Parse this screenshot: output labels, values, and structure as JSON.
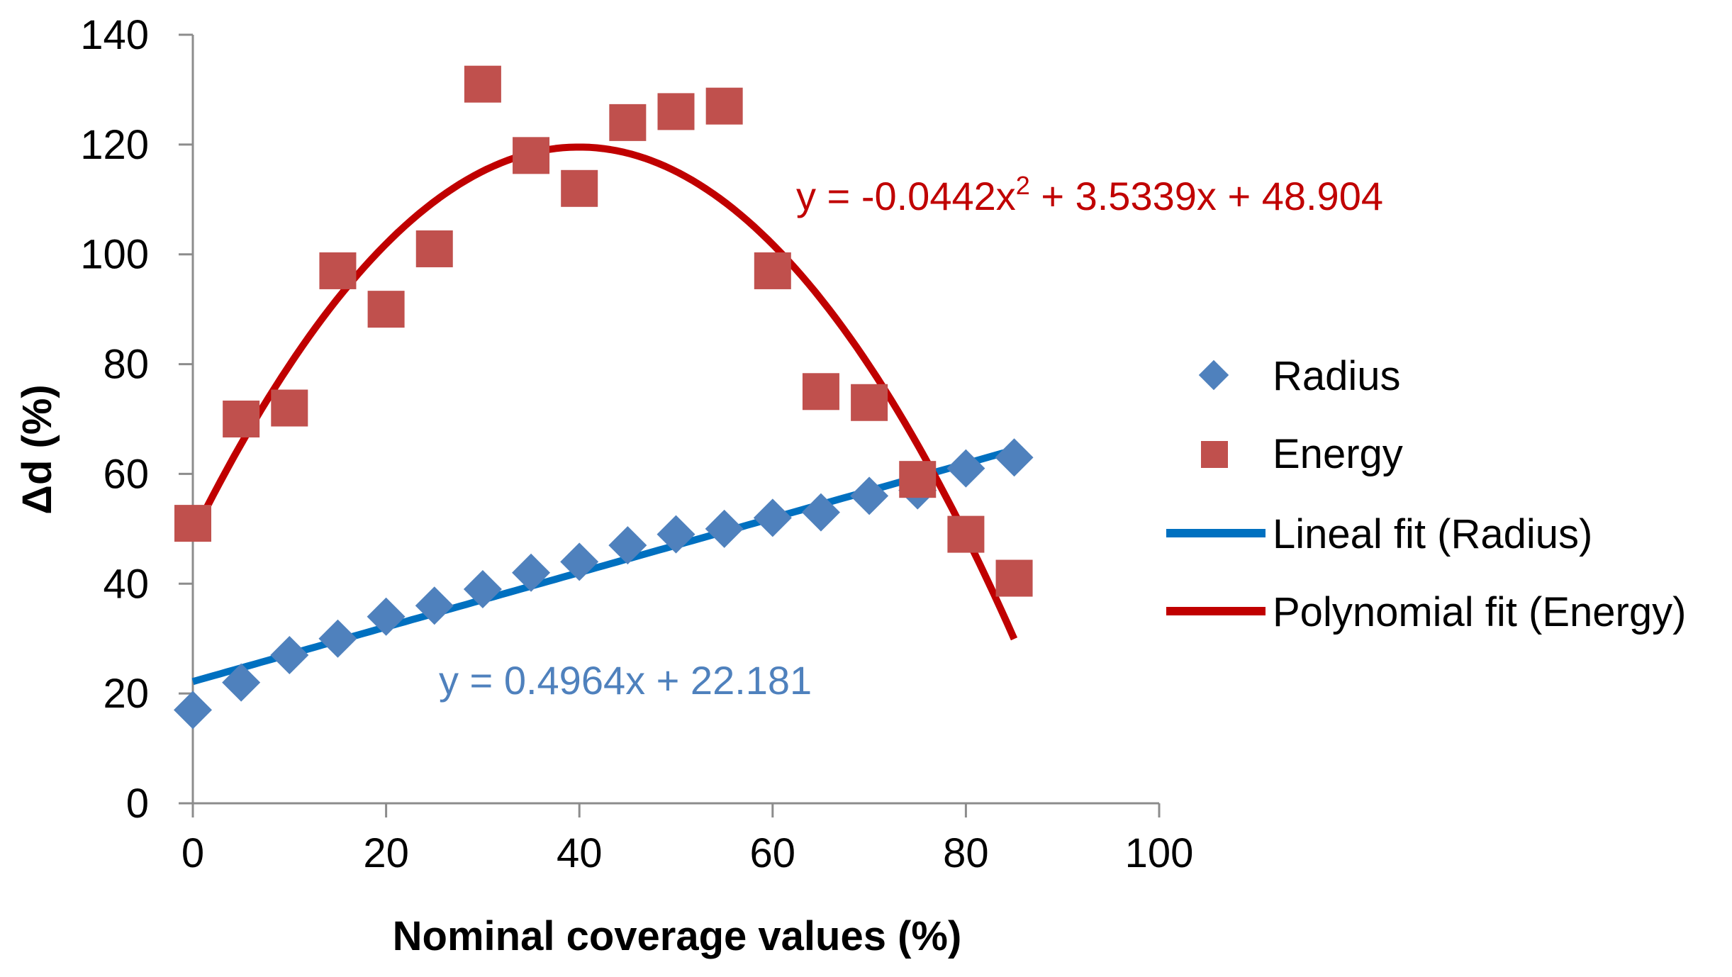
{
  "chart_data": {
    "type": "scatter",
    "title": "",
    "xlabel": "Nominal coverage values (%)",
    "ylabel_symbol": "Δd",
    "ylabel_units": "(%)",
    "xlim": [
      0,
      100
    ],
    "ylim": [
      0,
      140
    ],
    "xticks": [
      "0",
      "20",
      "40",
      "60",
      "80",
      "100"
    ],
    "yticks": [
      "0",
      "20",
      "40",
      "60",
      "80",
      "100",
      "120",
      "140"
    ],
    "grid": false,
    "legend_position": "right",
    "series": [
      {
        "name": "Radius",
        "marker": "diamond",
        "color": "#4f81bd",
        "x": [
          0,
          5,
          10,
          15,
          20,
          25,
          30,
          35,
          40,
          45,
          50,
          55,
          60,
          65,
          70,
          75,
          80,
          85
        ],
        "y": [
          17,
          22,
          27,
          30,
          34,
          36,
          39,
          42,
          44,
          47,
          49,
          50,
          52,
          53,
          56,
          57,
          61,
          63
        ]
      },
      {
        "name": "Energy",
        "marker": "square",
        "color": "#c0504d",
        "x": [
          0,
          5,
          10,
          15,
          20,
          25,
          30,
          35,
          40,
          45,
          50,
          55,
          60,
          65,
          70,
          75,
          80,
          85
        ],
        "y": [
          51,
          70,
          72,
          97,
          90,
          101,
          131,
          118,
          112,
          124,
          126,
          127,
          97,
          75,
          73,
          59,
          49,
          41
        ]
      }
    ],
    "fits": [
      {
        "name": "Lineal fit (Radius)",
        "kind": "linear",
        "color": "#0070c0",
        "coef": [
          0.4964,
          22.181
        ],
        "x_range": [
          0,
          85
        ],
        "equation": "y = 0.4964x + 22.181",
        "equation_color": "#4f81bd"
      },
      {
        "name": "Polynomial fit (Energy)",
        "kind": "polynomial",
        "color": "#c00000",
        "coef": [
          -0.0442,
          3.5339,
          48.904
        ],
        "x_range": [
          0,
          85
        ],
        "equation_parts": [
          "y = -0.0442x",
          "2",
          " + 3.5339x + 48.904"
        ],
        "equation_color": "#c00000"
      }
    ]
  }
}
